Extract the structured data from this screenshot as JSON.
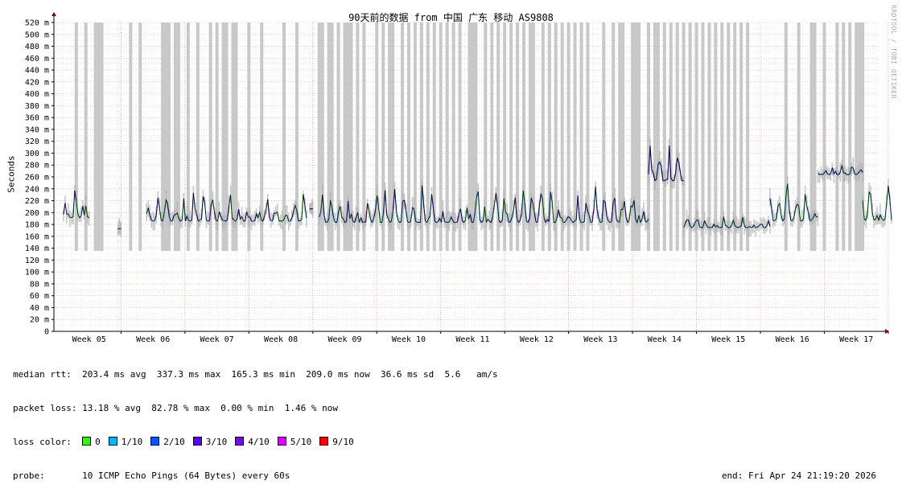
{
  "chart_data": {
    "type": "line",
    "title": "90天前的数据 from 中国 广东 移动 AS9808",
    "ylabel": "Seconds",
    "watermark": "RRDTOOL / TOBI OETIKER",
    "ylim_ms": [
      0,
      520
    ],
    "y_ticks": [
      "0",
      "20 m",
      "40 m",
      "60 m",
      "80 m",
      "100 m",
      "120 m",
      "140 m",
      "160 m",
      "180 m",
      "200 m",
      "220 m",
      "240 m",
      "260 m",
      "280 m",
      "300 m",
      "320 m",
      "340 m",
      "360 m",
      "380 m",
      "400 m",
      "420 m",
      "440 m",
      "460 m",
      "480 m",
      "500 m",
      "520 m"
    ],
    "x_ticks": [
      "Week 05",
      "Week 06",
      "Week 07",
      "Week 08",
      "Week 09",
      "Week 10",
      "Week 11",
      "Week 12",
      "Week 13",
      "Week 14",
      "Week 15",
      "Week 16",
      "Week 17"
    ],
    "grid": true,
    "x_unit": "weeks",
    "series_baseline": [
      {
        "x": [
          4.6,
          5.0
        ],
        "y": [
          180,
          255
        ],
        "loss": [
          0,
          5,
          1,
          3,
          0
        ]
      },
      {
        "x": [
          5.45,
          5.5
        ],
        "y": [
          172,
          175
        ],
        "loss": [
          1
        ]
      },
      {
        "x": [
          5.9,
          8.4
        ],
        "y": [
          175,
          245
        ],
        "loss": [
          1,
          0,
          2,
          3,
          1,
          0,
          2,
          4,
          1,
          0,
          3
        ]
      },
      {
        "x": [
          8.45,
          8.5
        ],
        "y": [
          205,
          210
        ],
        "loss": [
          4
        ]
      },
      {
        "x": [
          8.6,
          13.75
        ],
        "y": [
          170,
          258
        ],
        "loss": [
          2,
          1,
          0,
          3,
          1,
          2,
          4,
          1,
          0,
          2,
          1,
          3
        ]
      },
      {
        "x": [
          13.75,
          14.3
        ],
        "y": [
          240,
          330
        ],
        "loss": [
          3,
          2,
          4,
          2,
          3
        ]
      },
      {
        "x": [
          14.3,
          15.65
        ],
        "y": [
          170,
          200
        ],
        "loss": [
          1,
          0,
          2,
          1,
          3
        ]
      },
      {
        "x": [
          15.65,
          16.4
        ],
        "y": [
          170,
          275
        ],
        "loss": [
          1,
          2,
          1,
          0
        ]
      },
      {
        "x": [
          16.4,
          17.1
        ],
        "y": [
          260,
          285
        ],
        "loss": [
          2,
          1,
          3,
          1
        ]
      },
      {
        "x": [
          17.1,
          17.55
        ],
        "y": [
          172,
          270
        ],
        "loss": [
          1,
          0,
          2
        ]
      }
    ],
    "loss_spikes_weeks": [
      4.8,
      4.95,
      5.1,
      5.15,
      5.2,
      5.65,
      5.8,
      6.15,
      6.2,
      6.25,
      6.35,
      6.4,
      6.55,
      6.7,
      6.9,
      7.0,
      7.1,
      7.15,
      7.25,
      7.3,
      7.5,
      7.7,
      8.05,
      8.25,
      8.6,
      8.65,
      8.75,
      8.8,
      8.9,
      9.0,
      9.05,
      9.1,
      9.2,
      9.3,
      9.5,
      9.6,
      9.7,
      9.75,
      9.9,
      10.0,
      10.1,
      10.2,
      10.3,
      10.4,
      10.5,
      10.6,
      10.7,
      10.8,
      10.95,
      11.0,
      11.05,
      11.2,
      11.3,
      11.4,
      11.5,
      11.6,
      11.7,
      11.8,
      11.9,
      11.95,
      12.1,
      12.2,
      12.3,
      12.4,
      12.5,
      12.6,
      12.7,
      12.8,
      13.05,
      13.2,
      13.3,
      13.35,
      13.5,
      13.55,
      13.6,
      13.75,
      13.85,
      13.9,
      14.0,
      14.1,
      14.2,
      14.3,
      14.4,
      14.5,
      14.6,
      14.7,
      14.8,
      14.9,
      15.0,
      15.1,
      15.2,
      15.3,
      15.9,
      16.1,
      16.3,
      16.35,
      16.5,
      16.7,
      16.8,
      16.9,
      17.0,
      17.05,
      17.1
    ]
  },
  "legend": {
    "median_rtt_label": "median rtt:",
    "median_rtt_value": "203.4 ms avg  337.3 ms max  165.3 ms min  209.0 ms now  36.6 ms sd  5.6   am/s",
    "packet_loss_label": "packet loss:",
    "packet_loss_value": "13.18 % avg  82.78 % max  0.00 % min  1.46 % now",
    "loss_color_label": "loss color:",
    "loss_colors": [
      {
        "label": "0",
        "color": "#26ff00"
      },
      {
        "label": "1/10",
        "color": "#00b8ff"
      },
      {
        "label": "2/10",
        "color": "#0059ff"
      },
      {
        "label": "3/10",
        "color": "#5e00ff"
      },
      {
        "label": "4/10",
        "color": "#7e00ff"
      },
      {
        "label": "5/10",
        "color": "#dd00ff"
      },
      {
        "label": "9/10",
        "color": "#ff0000"
      }
    ],
    "probe_label": "probe:",
    "probe_value": "10 ICMP Echo Pings (64 Bytes) every 60s",
    "end_label": "end: Fri Apr 24 21:19:20 2026"
  }
}
